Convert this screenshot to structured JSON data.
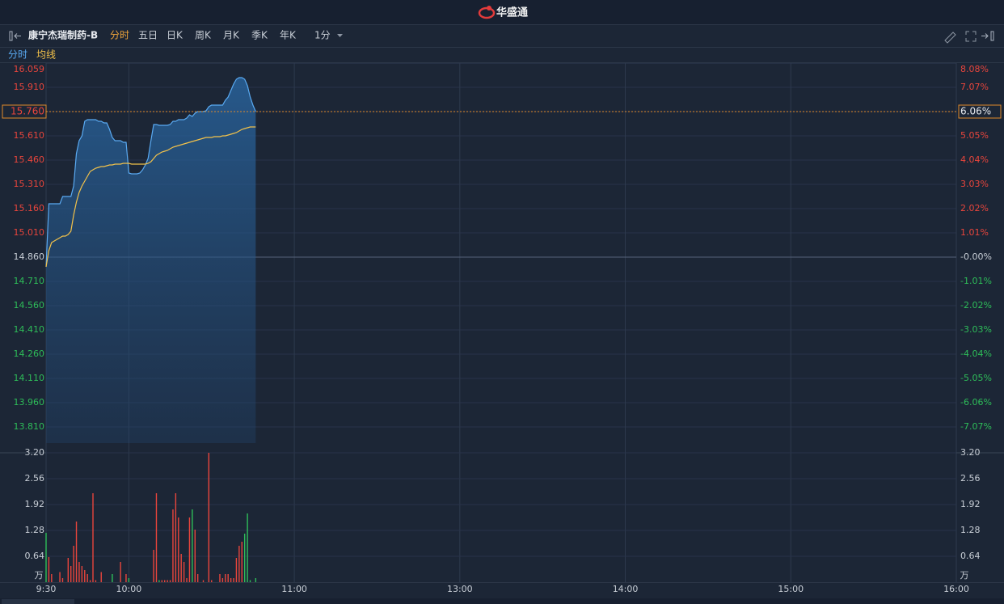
{
  "header": {
    "logo": "华盛通"
  },
  "toolbar": {
    "stock": "康宁杰瑞制药-B",
    "tabs": [
      "分时",
      "五日",
      "日K",
      "周K",
      "月K",
      "季K",
      "年K",
      "1分"
    ],
    "active": 0
  },
  "chart_data": [
    {
      "type": "line",
      "x": [
        0,
        1,
        2,
        3,
        4,
        5,
        6,
        7,
        8,
        9,
        10,
        11,
        12,
        13,
        14,
        15,
        16,
        17,
        18,
        19,
        20,
        21,
        22,
        23,
        24,
        25,
        26,
        27,
        28,
        29,
        30,
        31,
        32,
        33,
        34,
        35,
        36,
        37,
        38,
        39,
        40,
        41,
        42,
        43,
        44,
        45,
        46,
        47,
        48,
        49,
        50,
        51,
        52,
        53,
        54,
        55,
        56,
        57,
        58,
        59,
        60,
        61,
        62,
        63,
        64,
        65,
        66,
        67,
        68,
        69,
        70,
        71,
        72,
        73,
        74,
        75,
        76
      ],
      "xlim": [
        0,
        330
      ],
      "xticks": [
        {
          "value": 0,
          "label": "9:30"
        },
        {
          "value": 30,
          "label": "10:00"
        },
        {
          "value": 90,
          "label": "11:00"
        },
        {
          "value": 150,
          "label": "13:00"
        },
        {
          "value": 210,
          "label": "14:00"
        },
        {
          "value": 270,
          "label": "15:00"
        },
        {
          "value": 330,
          "label": "16:00"
        }
      ],
      "ylim": [
        13.71,
        16.06
      ],
      "yticks": [
        {
          "value": 16.059,
          "label": "16.059"
        },
        {
          "value": 15.91,
          "label": "15.910"
        },
        {
          "value": 15.76,
          "label": "15.760"
        },
        {
          "value": 15.61,
          "label": "15.610"
        },
        {
          "value": 15.46,
          "label": "15.460"
        },
        {
          "value": 15.31,
          "label": "15.310"
        },
        {
          "value": 15.16,
          "label": "15.160"
        },
        {
          "value": 15.01,
          "label": "15.010"
        },
        {
          "value": 14.86,
          "label": "14.860"
        },
        {
          "value": 14.71,
          "label": "14.710"
        },
        {
          "value": 14.56,
          "label": "14.560"
        },
        {
          "value": 14.41,
          "label": "14.410"
        },
        {
          "value": 14.26,
          "label": "14.260"
        },
        {
          "value": 14.11,
          "label": "14.110"
        },
        {
          "value": 13.96,
          "label": "13.960"
        },
        {
          "value": 13.81,
          "label": "13.810"
        }
      ],
      "y2lim": [
        -7.74,
        8.08
      ],
      "y2ticks": [
        {
          "value": 8.08,
          "label": "8.08%"
        },
        {
          "value": 7.07,
          "label": "7.07%"
        },
        {
          "value": 6.06,
          "label": "6.06%"
        },
        {
          "value": 5.05,
          "label": "5.05%"
        },
        {
          "value": 4.04,
          "label": "4.04%"
        },
        {
          "value": 3.03,
          "label": "3.03%"
        },
        {
          "value": 2.02,
          "label": "2.02%"
        },
        {
          "value": 1.01,
          "label": "1.01%"
        },
        {
          "value": 0,
          "label": "-0.00%"
        },
        {
          "value": -1.01,
          "label": "-1.01%"
        },
        {
          "value": -2.02,
          "label": "-2.02%"
        },
        {
          "value": -3.03,
          "label": "-3.03%"
        },
        {
          "value": -4.04,
          "label": "-4.04%"
        },
        {
          "value": -5.05,
          "label": "-5.05%"
        },
        {
          "value": -6.06,
          "label": "-6.06%"
        },
        {
          "value": -7.07,
          "label": "-7.07%"
        }
      ],
      "reference": 14.86,
      "last_price": {
        "value": 15.76,
        "label": "15.760"
      },
      "last_change": {
        "value": 6.06,
        "label": "6.06%"
      },
      "up_color": "#e8453c",
      "down_color": "#2ebd59",
      "series": [
        {
          "name": "分时",
          "color": "#5aaaf2",
          "area": true,
          "values": [
            14.8,
            15.19,
            15.19,
            15.19,
            15.19,
            15.19,
            15.235,
            15.235,
            15.235,
            15.235,
            15.3,
            15.5,
            15.58,
            15.61,
            15.7,
            15.71,
            15.71,
            15.71,
            15.71,
            15.7,
            15.7,
            15.69,
            15.69,
            15.65,
            15.6,
            15.58,
            15.58,
            15.58,
            15.57,
            15.57,
            15.38,
            15.375,
            15.375,
            15.375,
            15.38,
            15.4,
            15.43,
            15.47,
            15.58,
            15.68,
            15.68,
            15.675,
            15.675,
            15.675,
            15.675,
            15.68,
            15.7,
            15.7,
            15.71,
            15.71,
            15.71,
            15.72,
            15.74,
            15.73,
            15.75,
            15.76,
            15.76,
            15.76,
            15.765,
            15.79,
            15.8,
            15.8,
            15.8,
            15.8,
            15.8,
            15.83,
            15.85,
            15.89,
            15.93,
            15.96,
            15.97,
            15.97,
            15.96,
            15.92,
            15.85,
            15.8,
            15.76
          ]
        },
        {
          "name": "均线",
          "color": "#f3c24a",
          "values": [
            14.8,
            14.9,
            14.95,
            14.96,
            14.97,
            14.98,
            14.99,
            14.99,
            15.0,
            15.02,
            15.12,
            15.2,
            15.26,
            15.3,
            15.33,
            15.36,
            15.39,
            15.4,
            15.41,
            15.415,
            15.42,
            15.42,
            15.425,
            15.43,
            15.43,
            15.435,
            15.435,
            15.435,
            15.44,
            15.44,
            15.44,
            15.435,
            15.435,
            15.435,
            15.435,
            15.435,
            15.435,
            15.44,
            15.45,
            15.47,
            15.49,
            15.5,
            15.51,
            15.515,
            15.52,
            15.53,
            15.54,
            15.545,
            15.55,
            15.555,
            15.56,
            15.565,
            15.57,
            15.575,
            15.58,
            15.585,
            15.59,
            15.595,
            15.6,
            15.6,
            15.6,
            15.605,
            15.605,
            15.605,
            15.61,
            15.61,
            15.615,
            15.62,
            15.625,
            15.63,
            15.64,
            15.65,
            15.655,
            15.66,
            15.665,
            15.665,
            15.665
          ]
        }
      ]
    },
    {
      "type": "bar",
      "x": [
        0,
        1,
        2,
        3,
        4,
        5,
        6,
        7,
        8,
        9,
        10,
        11,
        12,
        13,
        14,
        15,
        16,
        17,
        18,
        19,
        20,
        21,
        22,
        23,
        24,
        25,
        26,
        27,
        28,
        29,
        30,
        31,
        32,
        33,
        34,
        35,
        36,
        37,
        38,
        39,
        40,
        41,
        42,
        43,
        44,
        45,
        46,
        47,
        48,
        49,
        50,
        51,
        52,
        53,
        54,
        55,
        56,
        57,
        58,
        59,
        60,
        61,
        62,
        63,
        64,
        65,
        66,
        67,
        68,
        69,
        70,
        71,
        72,
        73,
        74,
        75,
        76
      ],
      "values": [
        1.22,
        0.62,
        0.2,
        0,
        0,
        0.25,
        0.1,
        0,
        0.6,
        0.4,
        0.9,
        1.5,
        0.5,
        0.4,
        0.3,
        0.2,
        0.05,
        2.2,
        0.05,
        0,
        0.25,
        0,
        0,
        0,
        0.2,
        0,
        0,
        0.5,
        0,
        0.2,
        0.1,
        0,
        0,
        0,
        0,
        0,
        0,
        0,
        0,
        0.8,
        2.2,
        0.05,
        0.05,
        0.05,
        0.05,
        0.05,
        1.8,
        2.2,
        1.6,
        0.7,
        0.5,
        0.1,
        1.6,
        1.8,
        1.3,
        0.2,
        0,
        0.05,
        0,
        3.2,
        0.05,
        0,
        0,
        0.2,
        0.1,
        0.2,
        0.2,
        0.1,
        0.1,
        0.6,
        0.9,
        1.0,
        1.2,
        1.7,
        0.05,
        0,
        0.1
      ],
      "ylim": [
        0,
        3.2
      ],
      "yticks": [
        {
          "value": 3.2,
          "label": "3.20"
        },
        2.56,
        1.92,
        1.28,
        0.64
      ],
      "unit": "万"
    }
  ]
}
